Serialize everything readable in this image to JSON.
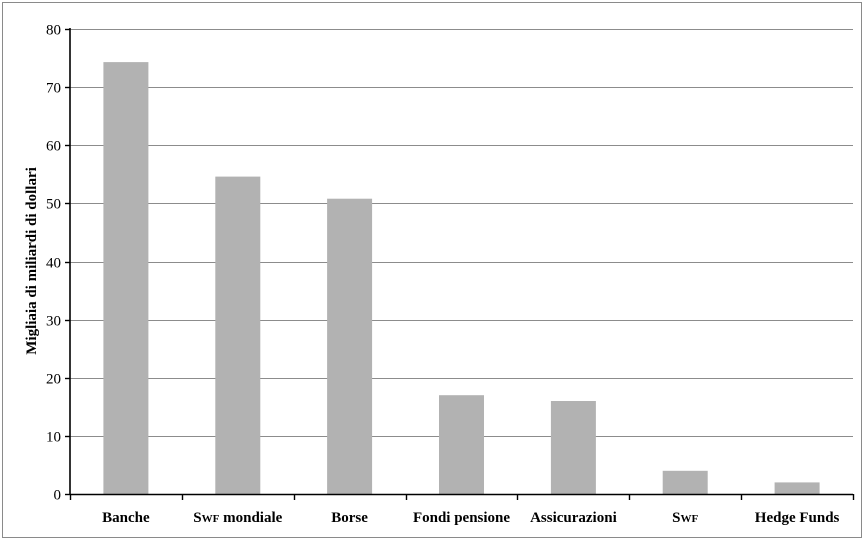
{
  "chart_data": {
    "type": "bar",
    "title": "",
    "xlabel": "",
    "ylabel": "Migliaia di miliardi di dollari",
    "categories": [
      "Banche",
      "Swf mondiale",
      "Borse",
      "Fondi pensione",
      "Assicurazioni",
      "Swf",
      "Hedge Funds"
    ],
    "values": [
      74.3,
      54.6,
      50.8,
      17.0,
      16.0,
      4.0,
      2.0
    ],
    "ylim": [
      0,
      80
    ],
    "yticks": [
      0,
      10,
      20,
      30,
      40,
      50,
      60,
      70,
      80
    ],
    "grid": true,
    "colors": {
      "bar": "#b2b2b2",
      "grid": "#8c8c8c",
      "axis": "#000000"
    }
  }
}
